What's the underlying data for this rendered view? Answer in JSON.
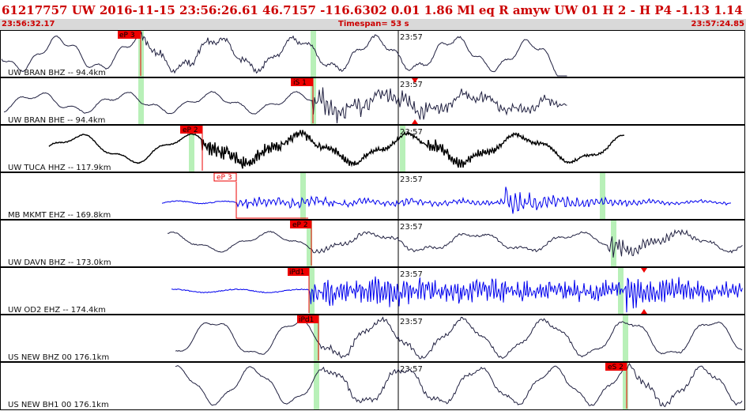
{
  "header": {
    "title": "61217757 UW 2016-11-15 23:56:26.61   46.7157 -116.6302   0.01  1.86 Ml   eq   R amyw      UW 01   H   2   -   H P4    -1.13  1.14",
    "start_time": "23:56:32.17",
    "timespan": "Timespan=  53 s",
    "end_time": "23:57:24.85"
  },
  "colors": {
    "pick": "#ee0000",
    "window": "#b8f0b8",
    "black_trace": "#000000",
    "blue_trace": "#0000ee",
    "dark_trace": "#202040"
  },
  "panels": [
    {
      "label": "UW BRAN BHZ -- 94.4km",
      "minute_label": "23:57",
      "color": "#202040",
      "weight": 1,
      "picks": [
        {
          "label": "eP 3",
          "style": "solid"
        }
      ]
    },
    {
      "label": "UW BRAN BHE -- 94.4km",
      "minute_label": "23:57",
      "color": "#202040",
      "weight": 1,
      "picks": [
        {
          "label": "iS 1",
          "style": "solid"
        }
      ]
    },
    {
      "label": "UW TUCA HHZ -- 117.9km",
      "minute_label": "23:57",
      "color": "#000000",
      "weight": 1.4,
      "picks": [
        {
          "label": "eP 2",
          "style": "solid"
        }
      ]
    },
    {
      "label": "MB MKMT EHZ -- 169.8km",
      "minute_label": "23:57",
      "color": "#0000ee",
      "weight": 1,
      "picks": [
        {
          "label": "eP 3",
          "style": "outline"
        }
      ]
    },
    {
      "label": "UW DAVN BHZ -- 173.0km",
      "minute_label": "23:57",
      "color": "#202040",
      "weight": 1,
      "picks": [
        {
          "label": "eP 2",
          "style": "solid"
        }
      ]
    },
    {
      "label": "UW OD2 EHZ -- 174.4km",
      "minute_label": "23:57",
      "color": "#0000ee",
      "weight": 1,
      "picks": [
        {
          "label": "iPd1",
          "style": "solid"
        }
      ]
    },
    {
      "label": "US NEW BHZ 00 176.1km",
      "minute_label": "23:57",
      "color": "#202040",
      "weight": 1,
      "picks": [
        {
          "label": "iPd1",
          "style": "solid"
        }
      ]
    },
    {
      "label": "US NEW BH1 00 176.1km",
      "minute_label": "23:57",
      "color": "#202040",
      "weight": 1,
      "picks": [
        {
          "label": "eS 2",
          "style": "solid"
        }
      ]
    }
  ]
}
